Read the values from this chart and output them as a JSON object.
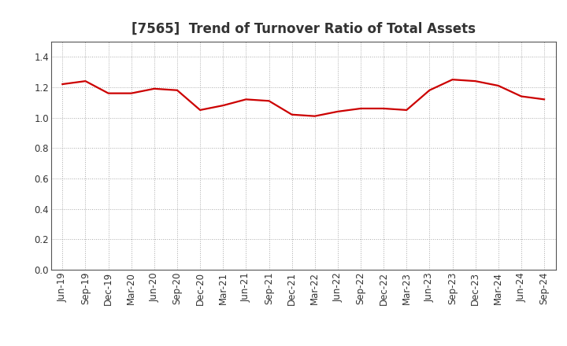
{
  "title": "[7565]  Trend of Turnover Ratio of Total Assets",
  "x_labels": [
    "Jun-19",
    "Sep-19",
    "Dec-19",
    "Mar-20",
    "Jun-20",
    "Sep-20",
    "Dec-20",
    "Mar-21",
    "Jun-21",
    "Sep-21",
    "Dec-21",
    "Mar-22",
    "Jun-22",
    "Sep-22",
    "Dec-22",
    "Mar-23",
    "Jun-23",
    "Sep-23",
    "Dec-23",
    "Mar-24",
    "Jun-24",
    "Sep-24"
  ],
  "y_values": [
    1.22,
    1.24,
    1.16,
    1.16,
    1.19,
    1.18,
    1.05,
    1.08,
    1.12,
    1.11,
    1.02,
    1.01,
    1.04,
    1.06,
    1.06,
    1.05,
    1.18,
    1.25,
    1.24,
    1.21,
    1.14,
    1.12
  ],
  "line_color": "#cc0000",
  "line_width": 1.6,
  "ylim": [
    0.0,
    1.5
  ],
  "yticks": [
    0.0,
    0.2,
    0.4,
    0.6,
    0.8,
    1.0,
    1.2,
    1.4
  ],
  "grid_color": "#aaaaaa",
  "background_color": "#ffffff",
  "title_fontsize": 12,
  "tick_fontsize": 8.5
}
